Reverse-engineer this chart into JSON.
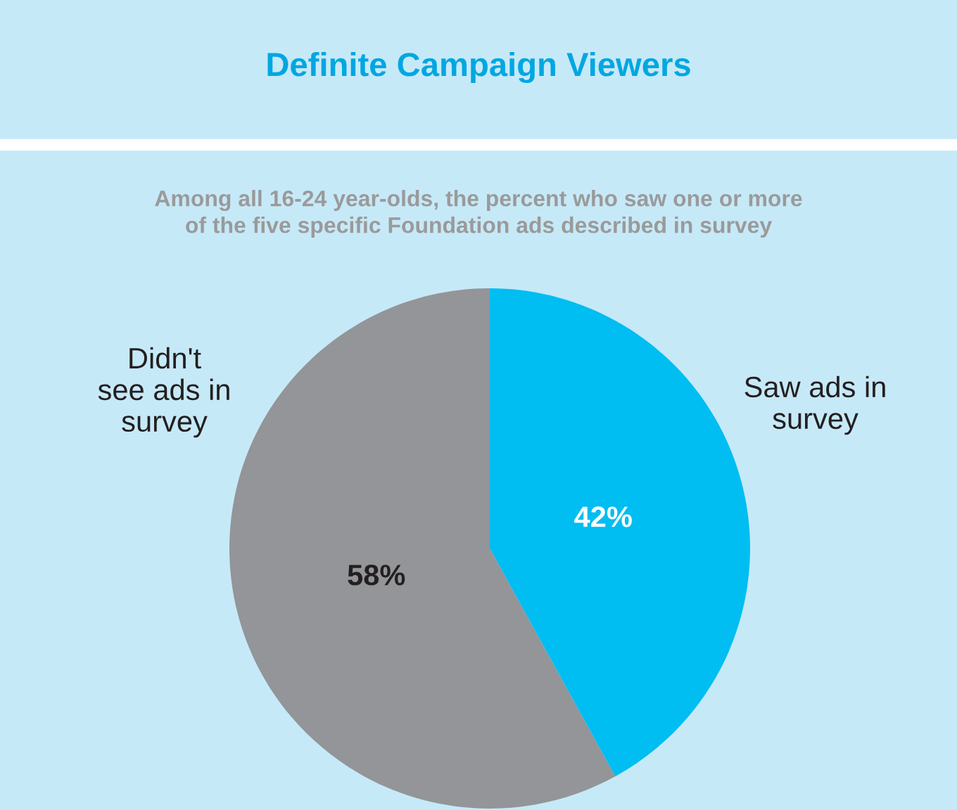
{
  "chart_data": {
    "type": "pie",
    "title": "Definite Campaign Viewers",
    "subtitle": "Among all 16-24 year-olds, the percent who saw one or more\nof the five specific Foundation ads described in survey",
    "categories": [
      "Saw ads in\nsurvey",
      "Didn't\nsee ads in\nsurvey"
    ],
    "values": [
      42,
      58
    ],
    "colors": [
      "#00bdf2",
      "#939598"
    ],
    "value_labels": [
      "42%",
      "58%"
    ],
    "legend": false
  }
}
